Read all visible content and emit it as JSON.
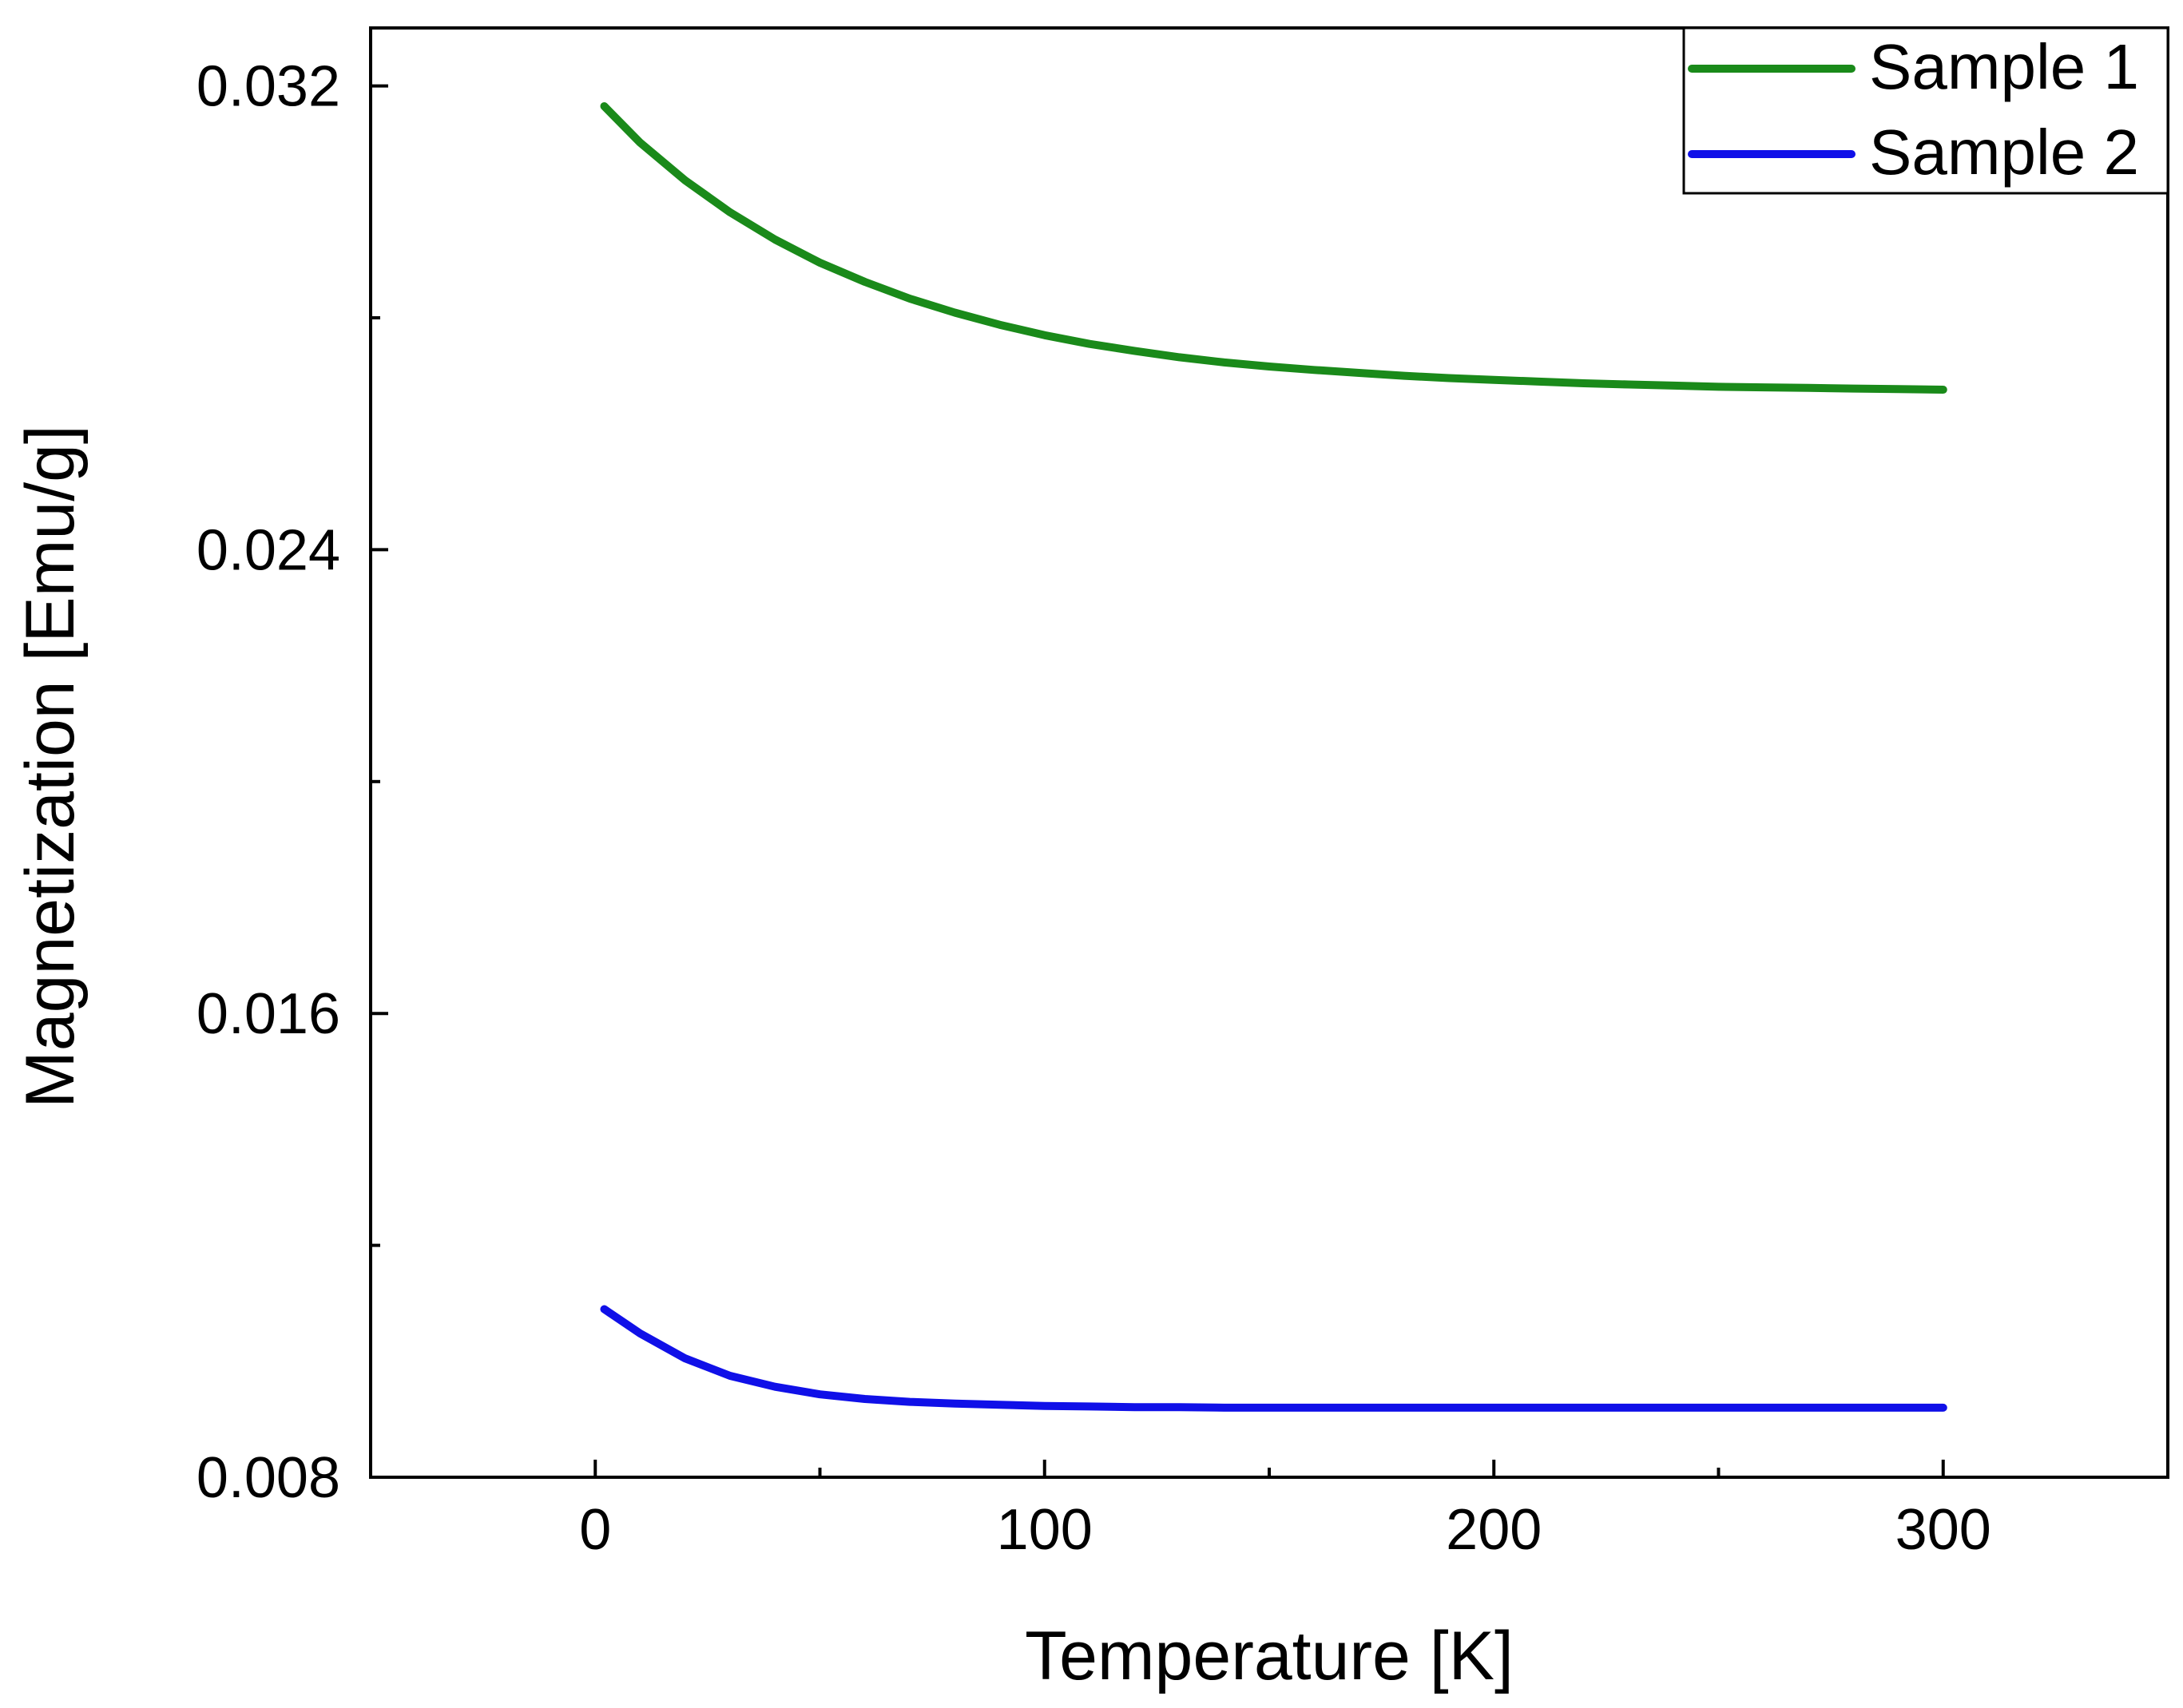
{
  "chart_data": {
    "type": "line",
    "title": "",
    "xlabel": "Temperature [K]",
    "ylabel": "Magnetization [Emu/g]",
    "xlim": [
      -50,
      350
    ],
    "ylim": [
      0.008,
      0.033
    ],
    "x_major_ticks": [
      0,
      100,
      200,
      300
    ],
    "x_tick_labels": [
      "0",
      "100",
      "200",
      "300"
    ],
    "x_minor_ticks": [
      50,
      150,
      250
    ],
    "y_major_ticks": [
      0.008,
      0.016,
      0.024,
      0.032
    ],
    "y_tick_labels": [
      "0.008",
      "0.016",
      "0.024",
      "0.032"
    ],
    "y_minor_ticks": [
      0.012,
      0.02,
      0.028
    ],
    "grid": false,
    "legend_position": "top-right",
    "series": [
      {
        "name": "Sample 1",
        "color": "#1a8a1a",
        "x": [
          2,
          10,
          20,
          30,
          40,
          50,
          60,
          70,
          80,
          90,
          100,
          110,
          120,
          130,
          140,
          150,
          160,
          170,
          180,
          190,
          200,
          210,
          220,
          230,
          240,
          250,
          260,
          270,
          280,
          290,
          300
        ],
        "y": [
          0.03165,
          0.03102,
          0.03037,
          0.02982,
          0.02935,
          0.02895,
          0.02862,
          0.02833,
          0.02809,
          0.02788,
          0.0277,
          0.02755,
          0.02743,
          0.02732,
          0.02723,
          0.02716,
          0.0271,
          0.02705,
          0.027,
          0.02696,
          0.02693,
          0.0269,
          0.02687,
          0.02685,
          0.02683,
          0.02681,
          0.0268,
          0.02679,
          0.02678,
          0.02677,
          0.02676
        ]
      },
      {
        "name": "Sample 2",
        "color": "#1010e8",
        "x": [
          2,
          10,
          20,
          30,
          40,
          50,
          60,
          70,
          80,
          90,
          100,
          110,
          120,
          130,
          140,
          150,
          160,
          170,
          180,
          190,
          200,
          210,
          220,
          230,
          240,
          250,
          260,
          270,
          280,
          290,
          300
        ],
        "y": [
          0.0109,
          0.01048,
          0.01005,
          0.00975,
          0.00956,
          0.00943,
          0.00935,
          0.0093,
          0.00927,
          0.00925,
          0.00923,
          0.00922,
          0.00921,
          0.00921,
          0.0092,
          0.0092,
          0.0092,
          0.0092,
          0.0092,
          0.0092,
          0.0092,
          0.0092,
          0.0092,
          0.0092,
          0.0092,
          0.0092,
          0.0092,
          0.0092,
          0.0092,
          0.0092,
          0.0092
        ]
      }
    ]
  }
}
